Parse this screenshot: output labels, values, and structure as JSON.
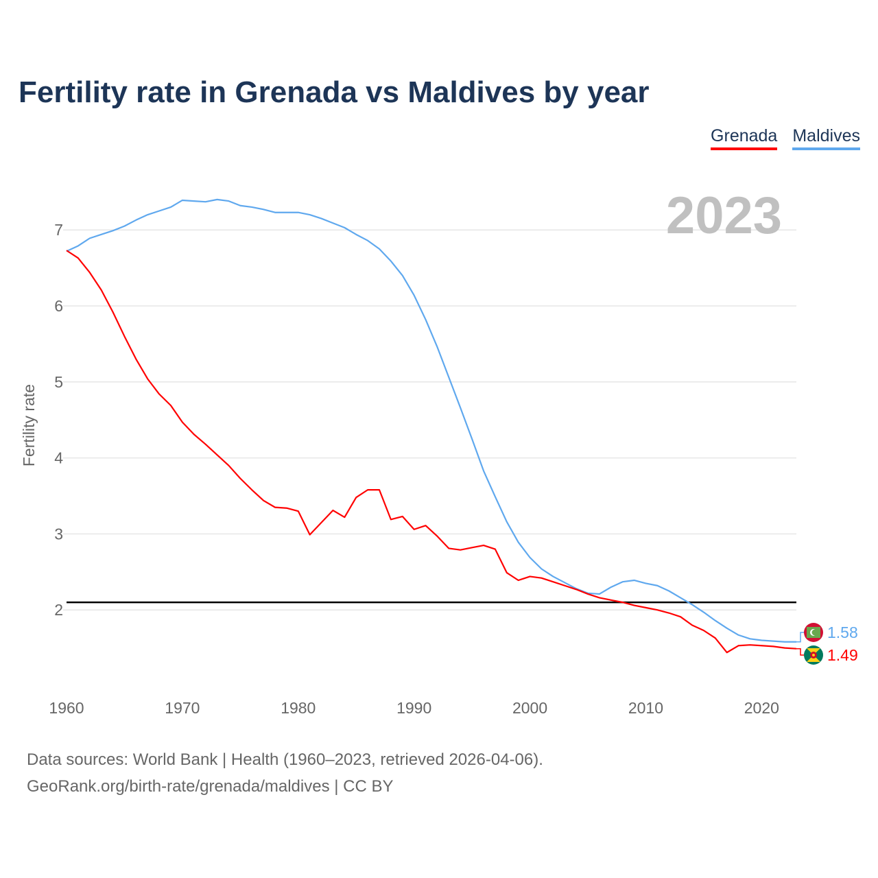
{
  "title": "Fertility rate in Grenada vs Maldives by year",
  "legend": [
    {
      "name": "Grenada",
      "color": "#ff0000"
    },
    {
      "name": "Maldives",
      "color": "#5fa8ee"
    }
  ],
  "year_watermark": "2023",
  "footer": {
    "line1": "Data sources: World Bank | Health (1960–2023, retrieved 2026-04-06).",
    "line2": "GeoRank.org/birth-rate/grenada/maldives | CC BY"
  },
  "chart_data": {
    "type": "line",
    "title": "Fertility rate in Grenada vs Maldives by year",
    "xlabel": "",
    "ylabel": "Fertility rate",
    "xlim": [
      1960,
      2023
    ],
    "ylim": [
      1,
      7.6
    ],
    "x_ticks": [
      1960,
      1970,
      1980,
      1990,
      2000,
      2010,
      2020
    ],
    "y_ticks": [
      2,
      3,
      4,
      5,
      6,
      7
    ],
    "grid": "horizontal",
    "legend_position": "top-right",
    "reference_line": {
      "y": 2.1
    },
    "x": [
      1960,
      1961,
      1962,
      1963,
      1964,
      1965,
      1966,
      1967,
      1968,
      1969,
      1970,
      1971,
      1972,
      1973,
      1974,
      1975,
      1976,
      1977,
      1978,
      1979,
      1980,
      1981,
      1982,
      1983,
      1984,
      1985,
      1986,
      1987,
      1988,
      1989,
      1990,
      1991,
      1992,
      1993,
      1994,
      1995,
      1996,
      1997,
      1998,
      1999,
      2000,
      2001,
      2002,
      2003,
      2004,
      2005,
      2006,
      2007,
      2008,
      2009,
      2010,
      2011,
      2012,
      2013,
      2014,
      2015,
      2016,
      2017,
      2018,
      2019,
      2020,
      2021,
      2022,
      2023
    ],
    "series": [
      {
        "name": "Grenada",
        "color": "#ff0000",
        "end_label": "1.49",
        "values": [
          6.73,
          6.63,
          6.44,
          6.21,
          5.92,
          5.6,
          5.3,
          5.04,
          4.84,
          4.69,
          4.47,
          4.31,
          4.18,
          4.04,
          3.9,
          3.73,
          3.58,
          3.44,
          3.35,
          3.34,
          3.3,
          2.99,
          3.15,
          3.31,
          3.22,
          3.48,
          3.58,
          3.58,
          3.19,
          3.23,
          3.06,
          3.11,
          2.97,
          2.81,
          2.79,
          2.82,
          2.85,
          2.8,
          2.49,
          2.39,
          2.44,
          2.42,
          2.37,
          2.32,
          2.27,
          2.21,
          2.16,
          2.13,
          2.1,
          2.06,
          2.03,
          2.0,
          1.96,
          1.91,
          1.8,
          1.73,
          1.63,
          1.44,
          1.53,
          1.54,
          1.53,
          1.52,
          1.5,
          1.49
        ]
      },
      {
        "name": "Maldives",
        "color": "#5fa8ee",
        "end_label": "1.58",
        "values": [
          6.72,
          6.79,
          6.89,
          6.94,
          6.99,
          7.05,
          7.13,
          7.2,
          7.25,
          7.3,
          7.39,
          7.38,
          7.37,
          7.4,
          7.38,
          7.32,
          7.3,
          7.27,
          7.23,
          7.23,
          7.23,
          7.2,
          7.15,
          7.09,
          7.03,
          6.94,
          6.86,
          6.75,
          6.59,
          6.4,
          6.14,
          5.82,
          5.46,
          5.06,
          4.66,
          4.25,
          3.83,
          3.49,
          3.16,
          2.89,
          2.69,
          2.54,
          2.44,
          2.36,
          2.28,
          2.22,
          2.21,
          2.3,
          2.37,
          2.39,
          2.35,
          2.32,
          2.25,
          2.16,
          2.07,
          1.97,
          1.86,
          1.76,
          1.67,
          1.62,
          1.6,
          1.59,
          1.58,
          1.58
        ]
      }
    ]
  }
}
